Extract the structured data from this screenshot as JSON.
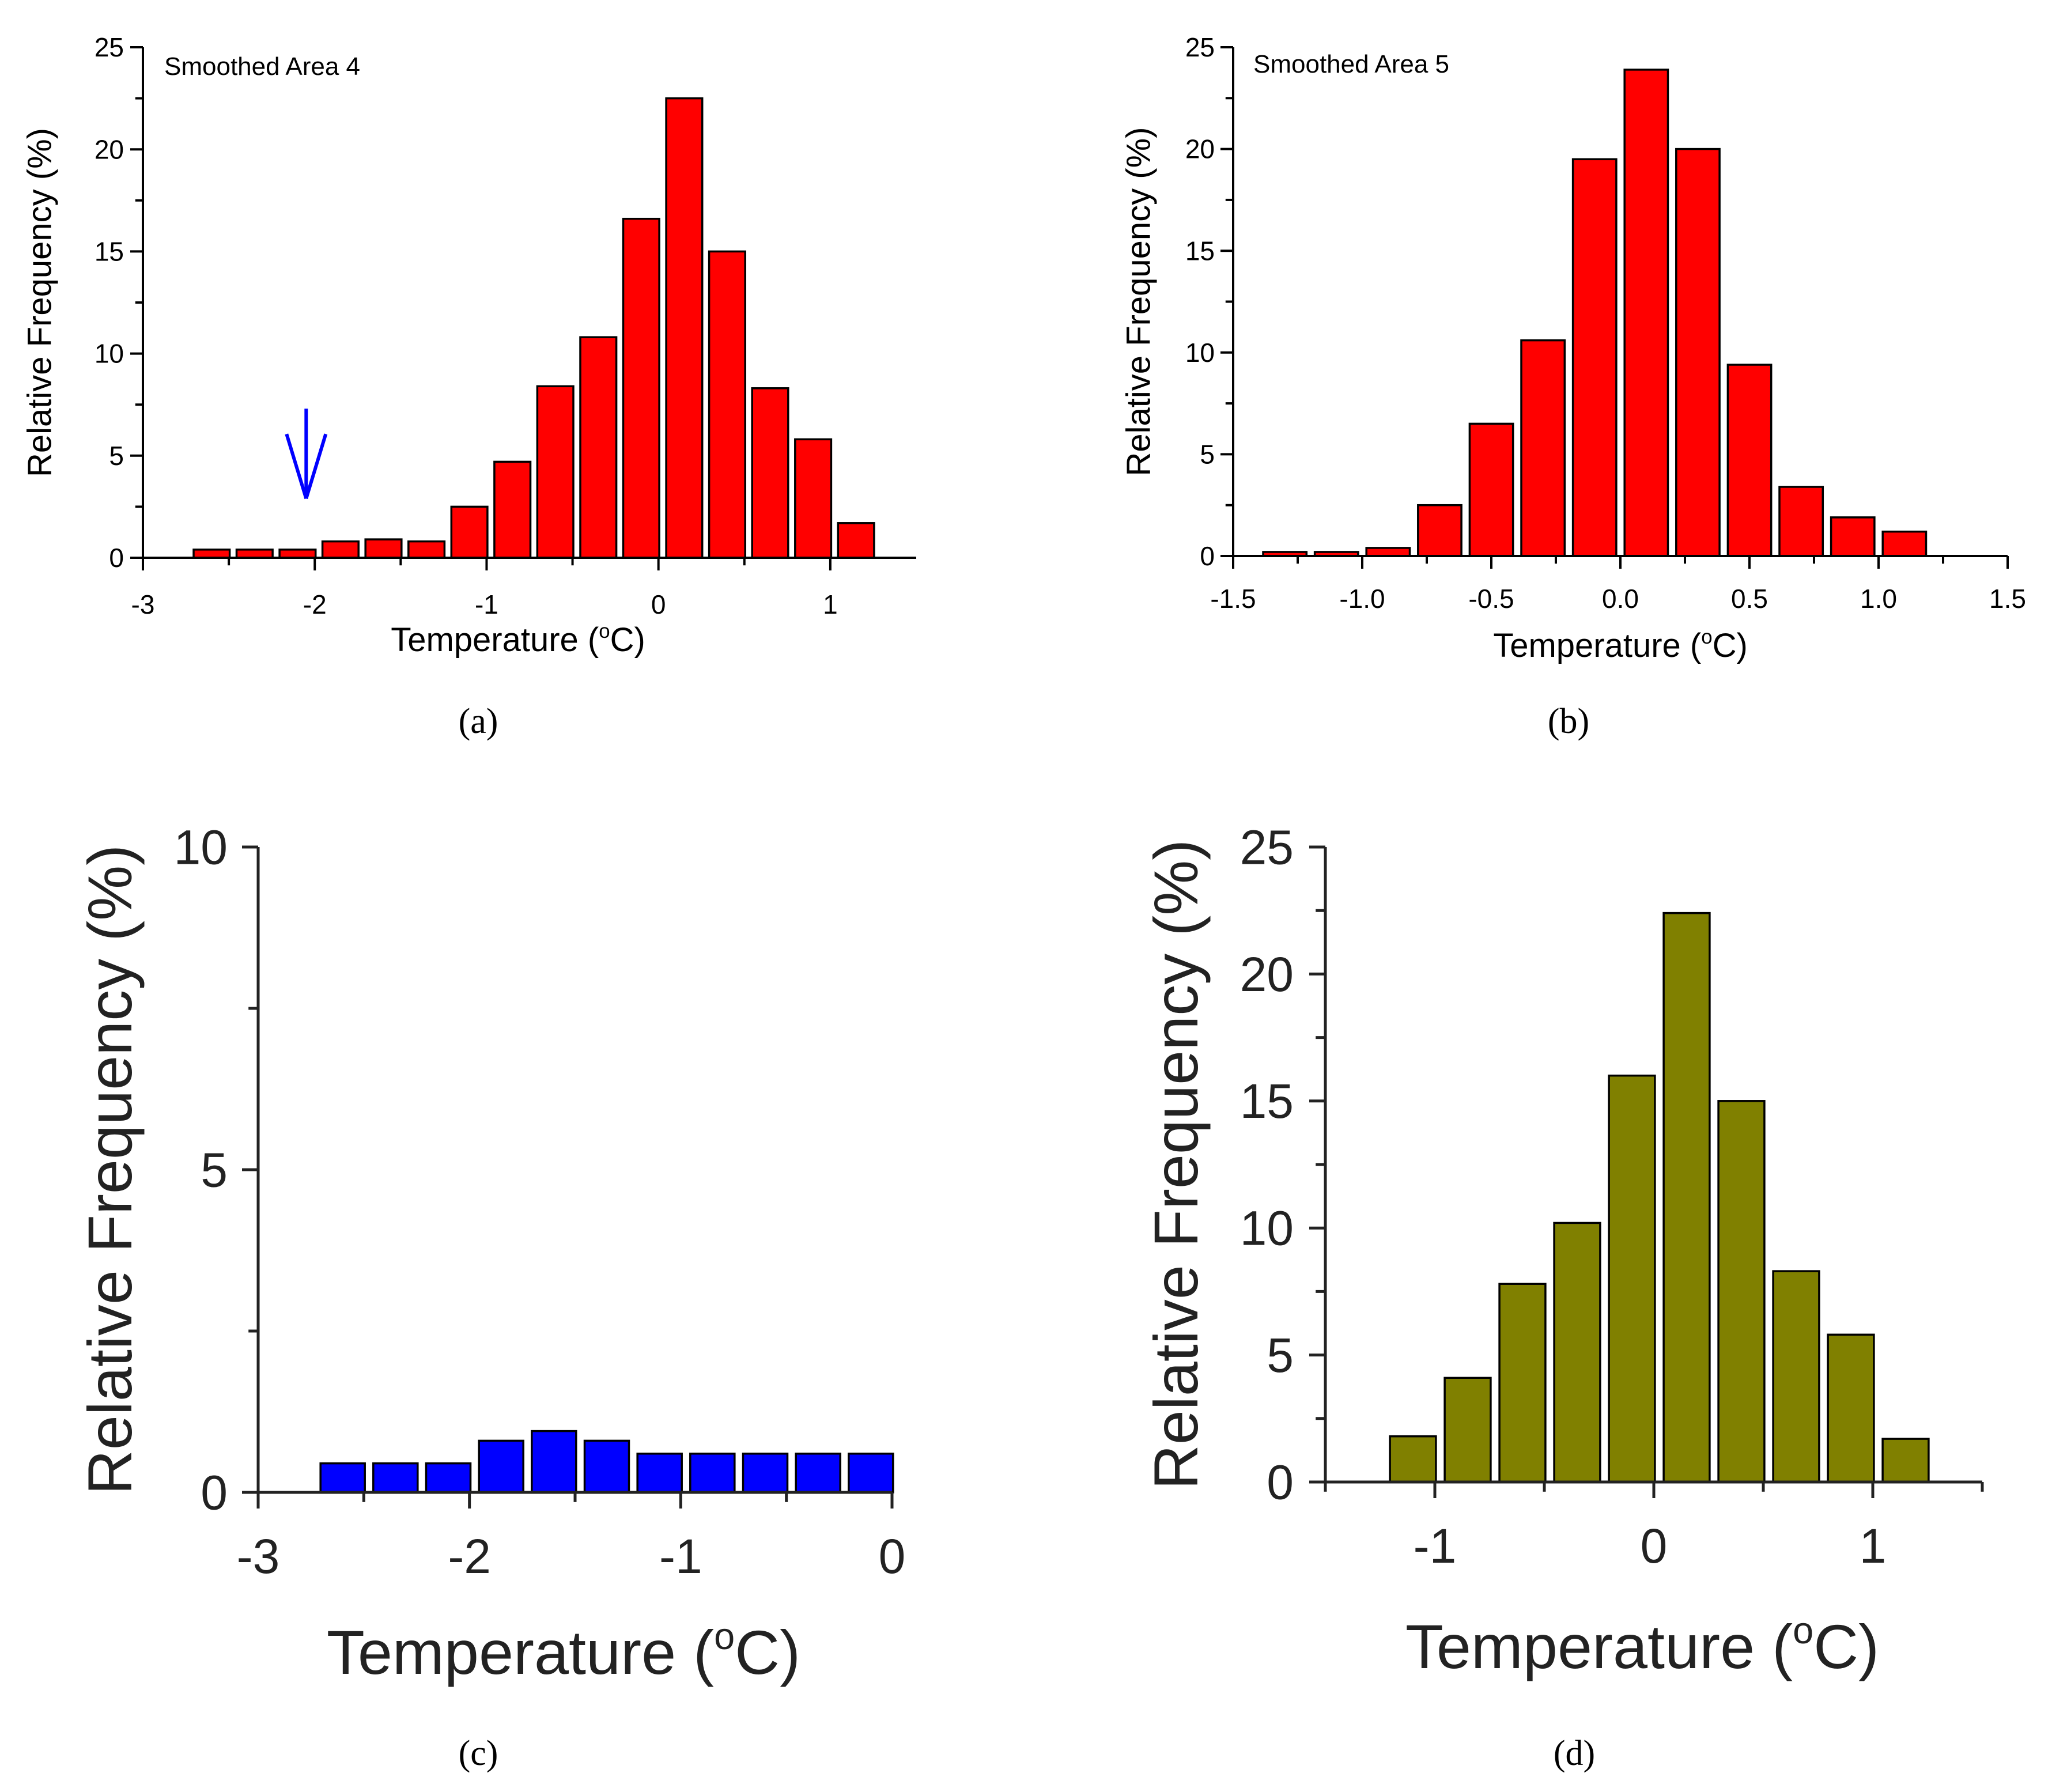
{
  "colors": {
    "panel_a": "#ff0000",
    "panel_b": "#ff0000",
    "panel_c": "#0000ff",
    "panel_d": "#808000",
    "axis": "#000000",
    "axis_cd": "#222222",
    "arrow": "#0000ff"
  },
  "chart_data": [
    {
      "id": "a",
      "type": "bar",
      "caption": "(a)",
      "annotation": "Smoothed Area 4",
      "xlabel": "Temperature (",
      "xlabel_sup": "o",
      "xlabel_unit": "C)",
      "ylabel": "Relative Frequency (%)",
      "xlim": [
        -3,
        1.5
      ],
      "ylim": [
        0,
        25
      ],
      "xticks": [
        -3,
        -2,
        -1,
        0,
        1
      ],
      "xtick_labels": [
        "-3",
        "-2",
        "-1",
        "0",
        "1"
      ],
      "yticks": [
        0,
        5,
        10,
        15,
        20,
        25
      ],
      "ytick_labels": [
        "0",
        "5",
        "10",
        "15",
        "20",
        "25"
      ],
      "bin_width": 0.25,
      "bars": [
        {
          "x": -2.6,
          "value": 0.4
        },
        {
          "x": -2.35,
          "value": 0.4
        },
        {
          "x": -2.1,
          "value": 0.4
        },
        {
          "x": -1.85,
          "value": 0.8
        },
        {
          "x": -1.6,
          "value": 0.9
        },
        {
          "x": -1.35,
          "value": 0.8
        },
        {
          "x": -1.1,
          "value": 2.5
        },
        {
          "x": -0.85,
          "value": 4.7
        },
        {
          "x": -0.6,
          "value": 8.4
        },
        {
          "x": -0.35,
          "value": 10.8
        },
        {
          "x": -0.1,
          "value": 16.6
        },
        {
          "x": 0.15,
          "value": 22.5
        },
        {
          "x": 0.4,
          "value": 15.0
        },
        {
          "x": 0.65,
          "value": 8.3
        },
        {
          "x": 0.9,
          "value": 5.8
        },
        {
          "x": 1.15,
          "value": 1.7
        }
      ],
      "arrow_at": {
        "x": -2.05,
        "y_top": 7.3,
        "y_tip": 2.9
      }
    },
    {
      "id": "b",
      "type": "bar",
      "caption": "(b)",
      "annotation": "Smoothed Area 5",
      "xlabel": "Temperature (",
      "xlabel_sup": "o",
      "xlabel_unit": "C)",
      "ylabel": "Relative Frequency (%)",
      "xlim": [
        -1.5,
        1.5
      ],
      "ylim": [
        0,
        25
      ],
      "xticks": [
        -1.5,
        -1.0,
        -0.5,
        0.0,
        0.5,
        1.0,
        1.5
      ],
      "xtick_labels": [
        "-1.5",
        "-1.0",
        "-0.5",
        "0.0",
        "0.5",
        "1.0",
        "1.5"
      ],
      "yticks": [
        0,
        5,
        10,
        15,
        20,
        25
      ],
      "ytick_labels": [
        "0",
        "5",
        "10",
        "15",
        "20",
        "25"
      ],
      "bin_width": 0.2,
      "bars": [
        {
          "x": -1.3,
          "value": 0.2
        },
        {
          "x": -1.1,
          "value": 0.2
        },
        {
          "x": -0.9,
          "value": 0.4
        },
        {
          "x": -0.7,
          "value": 2.5
        },
        {
          "x": -0.5,
          "value": 6.5
        },
        {
          "x": -0.3,
          "value": 10.6
        },
        {
          "x": -0.1,
          "value": 19.5
        },
        {
          "x": 0.1,
          "value": 23.9
        },
        {
          "x": 0.3,
          "value": 20.0
        },
        {
          "x": 0.5,
          "value": 9.4
        },
        {
          "x": 0.7,
          "value": 3.4
        },
        {
          "x": 0.9,
          "value": 1.9
        },
        {
          "x": 1.1,
          "value": 1.2
        }
      ]
    },
    {
      "id": "c",
      "type": "bar",
      "caption": "(c)",
      "xlabel": "Temperature (",
      "xlabel_sup": "o",
      "xlabel_unit": "C)",
      "ylabel": "Relative Frequency (%)",
      "xlim": [
        -3,
        0
      ],
      "ylim": [
        0,
        10
      ],
      "xticks": [
        -3,
        -2,
        -1,
        0
      ],
      "xtick_labels": [
        "-3",
        "-2",
        "-1",
        "0"
      ],
      "yticks": [
        0,
        5,
        10
      ],
      "ytick_labels": [
        "0",
        "5",
        "10"
      ],
      "bin_width": 0.25,
      "bars": [
        {
          "x": -2.6,
          "value": 0.45
        },
        {
          "x": -2.35,
          "value": 0.45
        },
        {
          "x": -2.1,
          "value": 0.45
        },
        {
          "x": -1.85,
          "value": 0.8
        },
        {
          "x": -1.6,
          "value": 0.95
        },
        {
          "x": -1.35,
          "value": 0.8
        },
        {
          "x": -1.1,
          "value": 0.6
        },
        {
          "x": -0.85,
          "value": 0.6
        },
        {
          "x": -0.6,
          "value": 0.6
        },
        {
          "x": -0.35,
          "value": 0.6
        },
        {
          "x": -0.1,
          "value": 0.6
        }
      ]
    },
    {
      "id": "d",
      "type": "bar",
      "caption": "(d)",
      "xlabel": "Temperature (",
      "xlabel_sup": "o",
      "xlabel_unit": "C)",
      "ylabel": "Relative Frequency (%)",
      "xlim": [
        -1.5,
        1.5
      ],
      "ylim": [
        0,
        25
      ],
      "xticks": [
        -1,
        0,
        1
      ],
      "xtick_labels": [
        "-1",
        "0",
        "1"
      ],
      "yticks": [
        0,
        5,
        10,
        15,
        20,
        25
      ],
      "ytick_labels": [
        "0",
        "5",
        "10",
        "15",
        "20",
        "25"
      ],
      "bin_width": 0.25,
      "bars": [
        {
          "x": -1.1,
          "value": 1.8
        },
        {
          "x": -0.85,
          "value": 4.1
        },
        {
          "x": -0.6,
          "value": 7.8
        },
        {
          "x": -0.35,
          "value": 10.2
        },
        {
          "x": -0.1,
          "value": 16.0
        },
        {
          "x": 0.15,
          "value": 22.4
        },
        {
          "x": 0.4,
          "value": 15.0
        },
        {
          "x": 0.65,
          "value": 8.3
        },
        {
          "x": 0.9,
          "value": 5.8
        },
        {
          "x": 1.15,
          "value": 1.7
        }
      ]
    }
  ]
}
